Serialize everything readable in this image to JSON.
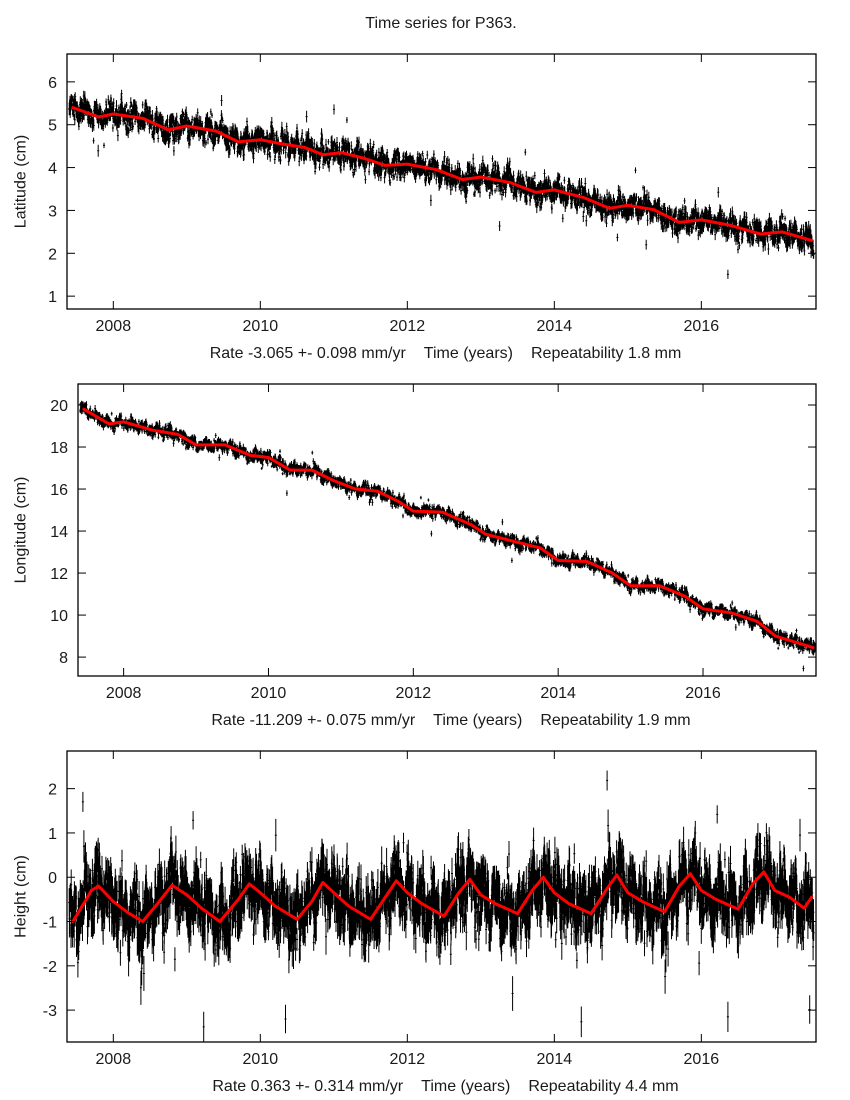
{
  "title": "Time series for P363.",
  "colors": {
    "data": "#000000",
    "fit": "#ff0000",
    "axis": "#000000"
  },
  "chart_data": [
    {
      "type": "scatter",
      "id": "latitude",
      "title": "",
      "ylabel": "Latitude (cm)",
      "xlabel_parts": [
        "Rate -3.065 +- 0.098 mm/yr",
        "Time (years)",
        "Repeatability 1.8 mm"
      ],
      "rate": "-3.065 +- 0.098 mm/yr",
      "repeatability": "1.8 mm",
      "xlim": [
        2007.37,
        2017.56
      ],
      "ylim": [
        0.7,
        6.65
      ],
      "xticks": [
        2008,
        2010,
        2012,
        2014,
        2016
      ],
      "yticks": [
        1,
        2,
        3,
        4,
        5,
        6
      ],
      "grid": false,
      "series": [
        {
          "name": "observations",
          "style": "points-with-error-bars",
          "noise_cm": 0.17,
          "error_bar_cm": 0.1
        },
        {
          "name": "fit",
          "style": "line",
          "x": [
            2007.45,
            2007.8,
            2008.0,
            2008.4,
            2008.75,
            2009.0,
            2009.4,
            2009.7,
            2010.0,
            2010.3,
            2010.6,
            2010.85,
            2011.1,
            2011.4,
            2011.7,
            2012.0,
            2012.4,
            2012.75,
            2013.0,
            2013.4,
            2013.75,
            2014.0,
            2014.4,
            2014.75,
            2015.0,
            2015.35,
            2015.7,
            2016.0,
            2016.4,
            2016.8,
            2017.1,
            2017.5
          ],
          "y": [
            5.4,
            5.18,
            5.25,
            5.15,
            4.88,
            4.97,
            4.85,
            4.6,
            4.65,
            4.55,
            4.47,
            4.3,
            4.35,
            4.22,
            4.05,
            4.08,
            3.95,
            3.72,
            3.78,
            3.65,
            3.42,
            3.48,
            3.3,
            3.05,
            3.12,
            3.02,
            2.72,
            2.78,
            2.65,
            2.45,
            2.5,
            2.3
          ]
        }
      ]
    },
    {
      "type": "scatter",
      "id": "longitude",
      "title": "",
      "ylabel": "Longitude (cm)",
      "xlabel_parts": [
        "Rate -11.209 +- 0.075 mm/yr",
        "Time (years)",
        "Repeatability 1.9 mm"
      ],
      "rate": "-11.209 +- 0.075 mm/yr",
      "repeatability": "1.9 mm",
      "xlim": [
        2007.37,
        2017.56
      ],
      "ylim": [
        7.1,
        21.0
      ],
      "xticks": [
        2008,
        2010,
        2012,
        2014,
        2016
      ],
      "yticks": [
        8,
        10,
        12,
        14,
        16,
        18,
        20
      ],
      "grid": false,
      "series": [
        {
          "name": "observations",
          "style": "points-with-error-bars",
          "noise_cm": 0.17,
          "error_bar_cm": 0.12
        },
        {
          "name": "fit",
          "style": "line",
          "x": [
            2007.45,
            2007.8,
            2008.0,
            2008.4,
            2008.75,
            2009.0,
            2009.4,
            2009.75,
            2010.0,
            2010.3,
            2010.6,
            2010.9,
            2011.2,
            2011.5,
            2011.8,
            2012.0,
            2012.4,
            2012.8,
            2013.0,
            2013.4,
            2013.75,
            2014.0,
            2014.4,
            2014.75,
            2015.0,
            2015.4,
            2015.75,
            2016.0,
            2016.4,
            2016.75,
            2017.0,
            2017.52
          ],
          "y": [
            19.8,
            19.1,
            19.2,
            18.8,
            18.6,
            18.1,
            18.1,
            17.6,
            17.5,
            16.9,
            16.9,
            16.4,
            16.0,
            15.9,
            15.4,
            14.95,
            14.9,
            14.3,
            13.85,
            13.5,
            13.2,
            12.6,
            12.55,
            12.0,
            11.4,
            11.4,
            10.9,
            10.3,
            10.1,
            9.7,
            9.0,
            8.45
          ]
        }
      ]
    },
    {
      "type": "scatter",
      "id": "height",
      "title": "",
      "ylabel": "Height (cm)",
      "xlabel_parts": [
        "Rate 0.363 +- 0.314 mm/yr",
        "Time (years)",
        "Repeatability 4.4 mm"
      ],
      "rate": "0.363 +- 0.314 mm/yr",
      "repeatability": "4.4 mm",
      "xlim": [
        2007.37,
        2017.56
      ],
      "ylim": [
        -3.72,
        2.85
      ],
      "xticks": [
        2008,
        2010,
        2012,
        2014,
        2016
      ],
      "yticks": [
        -3,
        -2,
        -1,
        0,
        1,
        2
      ],
      "grid": false,
      "series": [
        {
          "name": "observations",
          "style": "points-with-error-bars",
          "noise_cm": 0.42,
          "error_bar_cm": 0.3
        },
        {
          "name": "fit",
          "style": "line",
          "x": [
            2007.45,
            2007.65,
            2007.7,
            2007.8,
            2008.0,
            2008.2,
            2008.4,
            2008.6,
            2008.8,
            2009.0,
            2009.2,
            2009.45,
            2009.7,
            2009.85,
            2010.0,
            2010.2,
            2010.5,
            2010.7,
            2010.85,
            2011.0,
            2011.2,
            2011.5,
            2011.7,
            2011.85,
            2012.0,
            2012.2,
            2012.5,
            2012.7,
            2012.85,
            2013.0,
            2013.2,
            2013.5,
            2013.7,
            2013.85,
            2014.0,
            2014.2,
            2014.5,
            2014.7,
            2014.85,
            2015.0,
            2015.2,
            2015.5,
            2015.7,
            2015.85,
            2016.0,
            2016.2,
            2016.5,
            2016.7,
            2016.85,
            2017.0,
            2017.2,
            2017.4,
            2017.5
          ],
          "y": [
            -1.0,
            -0.45,
            -0.3,
            -0.2,
            -0.55,
            -0.8,
            -1.0,
            -0.6,
            -0.18,
            -0.4,
            -0.7,
            -1.0,
            -0.5,
            -0.15,
            -0.35,
            -0.65,
            -0.95,
            -0.55,
            -0.12,
            -0.35,
            -0.65,
            -0.95,
            -0.45,
            -0.08,
            -0.35,
            -0.6,
            -0.88,
            -0.35,
            -0.05,
            -0.4,
            -0.6,
            -0.82,
            -0.3,
            0.0,
            -0.35,
            -0.6,
            -0.82,
            -0.3,
            0.05,
            -0.35,
            -0.55,
            -0.78,
            -0.2,
            0.08,
            -0.3,
            -0.5,
            -0.72,
            -0.15,
            0.12,
            -0.3,
            -0.45,
            -0.7,
            -0.45
          ]
        }
      ]
    }
  ]
}
